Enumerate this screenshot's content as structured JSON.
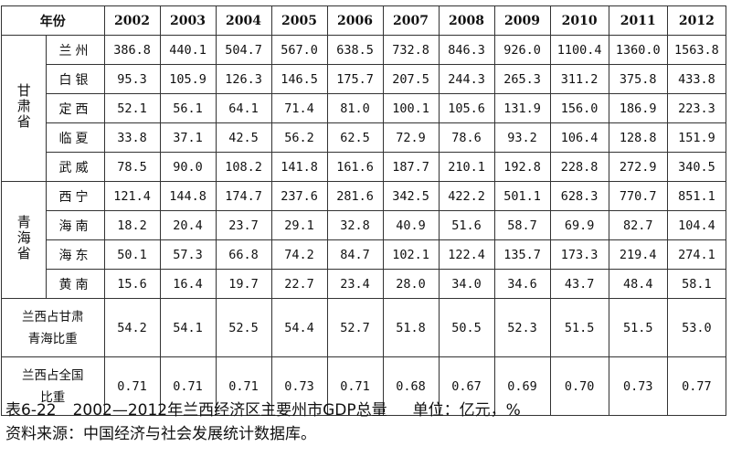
{
  "table": {
    "corner_label": "年份",
    "years": [
      "2002",
      "2003",
      "2004",
      "2005",
      "2006",
      "2007",
      "2008",
      "2009",
      "2010",
      "2011",
      "2012"
    ],
    "provinces": [
      {
        "name": "甘肃省",
        "cities": [
          {
            "name": "兰州",
            "values": [
              "386.8",
              "440.1",
              "504.7",
              "567.0",
              "638.5",
              "732.8",
              "846.3",
              "926.0",
              "1100.4",
              "1360.0",
              "1563.8"
            ]
          },
          {
            "name": "白银",
            "values": [
              "95.3",
              "105.9",
              "126.3",
              "146.5",
              "175.7",
              "207.5",
              "244.3",
              "265.3",
              "311.2",
              "375.8",
              "433.8"
            ]
          },
          {
            "name": "定西",
            "values": [
              "52.1",
              "56.1",
              "64.1",
              "71.4",
              "81.0",
              "100.1",
              "105.6",
              "131.9",
              "156.0",
              "186.9",
              "223.3"
            ]
          },
          {
            "name": "临夏",
            "values": [
              "33.8",
              "37.1",
              "42.5",
              "56.2",
              "62.5",
              "72.9",
              "78.6",
              "93.2",
              "106.4",
              "128.8",
              "151.9"
            ]
          },
          {
            "name": "武威",
            "values": [
              "78.5",
              "90.0",
              "108.2",
              "141.8",
              "161.6",
              "187.7",
              "210.1",
              "192.8",
              "228.8",
              "272.9",
              "340.5"
            ]
          }
        ]
      },
      {
        "name": "青海省",
        "cities": [
          {
            "name": "西宁",
            "values": [
              "121.4",
              "144.8",
              "174.7",
              "237.6",
              "281.6",
              "342.5",
              "422.2",
              "501.1",
              "628.3",
              "770.7",
              "851.1"
            ]
          },
          {
            "name": "海南",
            "values": [
              "18.2",
              "20.4",
              "23.7",
              "29.1",
              "32.8",
              "40.9",
              "51.6",
              "58.7",
              "69.9",
              "82.7",
              "104.4"
            ]
          },
          {
            "name": "海东",
            "values": [
              "50.1",
              "57.3",
              "66.8",
              "74.2",
              "84.7",
              "102.1",
              "122.4",
              "135.7",
              "173.3",
              "219.4",
              "274.1"
            ]
          },
          {
            "name": "黄南",
            "values": [
              "15.6",
              "16.4",
              "19.7",
              "22.7",
              "23.4",
              "28.0",
              "34.0",
              "34.6",
              "43.7",
              "48.4",
              "58.1"
            ]
          }
        ]
      }
    ],
    "ratio_rows": [
      {
        "label_line1": "兰西占甘肃",
        "label_line2": "青海比重",
        "values": [
          "54.2",
          "54.1",
          "52.5",
          "54.4",
          "52.7",
          "51.8",
          "50.5",
          "52.3",
          "51.5",
          "51.5",
          "53.0"
        ]
      },
      {
        "label_line1": "兰西占全国",
        "label_line2": "比重",
        "values": [
          "0.71",
          "0.71",
          "0.71",
          "0.73",
          "0.71",
          "0.68",
          "0.67",
          "0.69",
          "0.70",
          "0.73",
          "0.77"
        ]
      }
    ]
  },
  "caption": {
    "table_number": "表6-22",
    "title": "2002—2012年兰西经济区主要州市GDP总量",
    "unit": "单位：亿元，%",
    "source": "资料来源：中国经济与社会发展统计数据库。"
  }
}
